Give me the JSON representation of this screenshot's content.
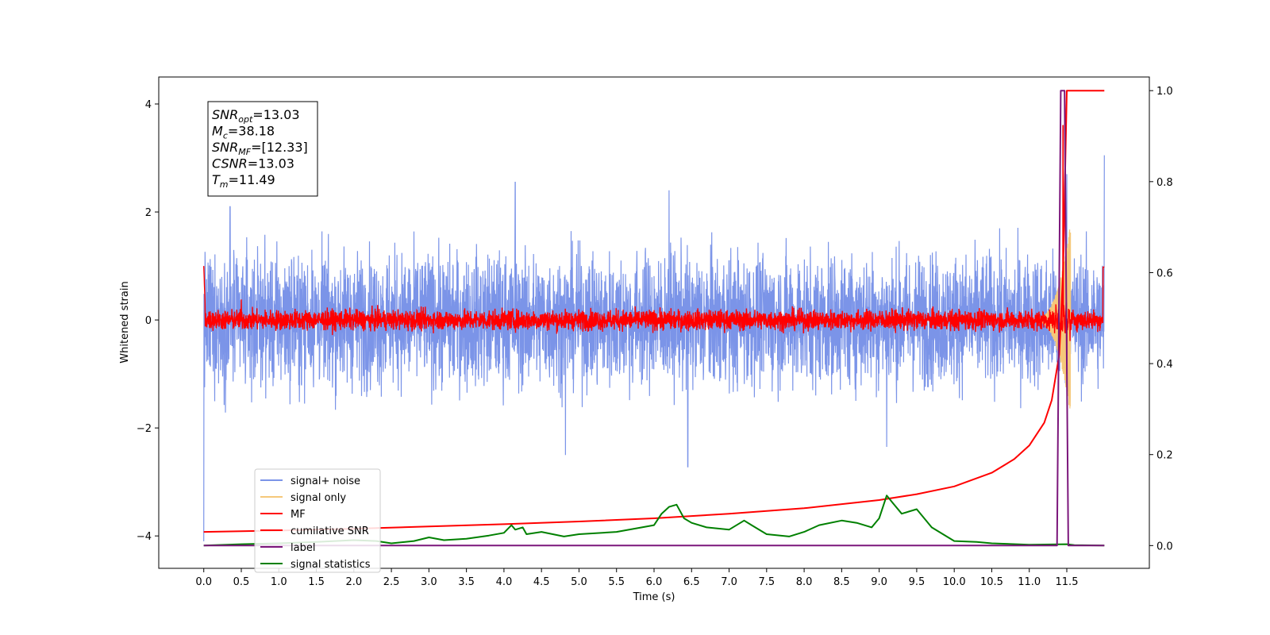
{
  "chart_data": {
    "type": "line",
    "xlabel": "Time (s)",
    "ylabel": "Whitened strain",
    "xlim": [
      -0.6,
      12.6
    ],
    "ylim": [
      -4.6,
      4.5
    ],
    "y2lim": [
      -0.05,
      1.03
    ],
    "grid": false,
    "legend_position": "lower-left",
    "x_ticks": [
      "0.0",
      "0.5",
      "1.0",
      "1.5",
      "2.0",
      "2.5",
      "3.0",
      "3.5",
      "4.0",
      "4.5",
      "5.0",
      "5.5",
      "6.0",
      "6.5",
      "7.0",
      "7.5",
      "8.0",
      "8.5",
      "9.0",
      "9.5",
      "10.0",
      "10.5",
      "11.0",
      "11.5"
    ],
    "y_ticks": [
      "4",
      "2",
      "0",
      "−2",
      "−4"
    ],
    "y2_ticks": [
      "1.0",
      "0.8",
      "0.6",
      "0.4",
      "0.2",
      "0.0"
    ],
    "annotation": {
      "lines": [
        {
          "base": "SNR",
          "sub": "opt",
          "value": "=13.03"
        },
        {
          "base": "M",
          "sub": "c",
          "value": "=38.18"
        },
        {
          "base": "SNR",
          "sub": "MF",
          "value": "=[12.33]"
        },
        {
          "base": "CSNR",
          "sub": "",
          "value": "=13.03"
        },
        {
          "base": "T",
          "sub": "m",
          "value": "=11.49"
        }
      ]
    },
    "series": [
      {
        "name": "signal+ noise",
        "axis": "left",
        "color": "#7b94e8",
        "style": "noise",
        "x_range": [
          0.0,
          12.0
        ],
        "amplitude_typical": 0.65,
        "peaks": [
          [
            0.35,
            2.1
          ],
          [
            4.15,
            2.55
          ],
          [
            6.2,
            2.4
          ],
          [
            11.5,
            2.7
          ],
          [
            12.0,
            3.05
          ],
          [
            6.45,
            -2.72
          ],
          [
            4.82,
            -2.5
          ],
          [
            9.1,
            -2.35
          ],
          [
            0.0,
            -4.1
          ]
        ]
      },
      {
        "name": "signal only",
        "axis": "left",
        "color": "#f5c87a",
        "style": "chirp",
        "x_range": [
          11.0,
          11.55
        ],
        "peak_amplitude": 1.8
      },
      {
        "name": "MF",
        "axis": "left",
        "color": "#ff0000",
        "style": "noise",
        "x_range": [
          0.0,
          12.0
        ],
        "amplitude_typical": 0.1,
        "start_value": 1.0,
        "end_value": 0.98,
        "peaks": [
          [
            0.5,
            0.38
          ],
          [
            11.45,
            3.6
          ],
          [
            11.5,
            -1.0
          ]
        ]
      },
      {
        "name": "cumilative SNR",
        "axis": "right",
        "color": "#ff0000",
        "style": "line",
        "x": [
          0.0,
          1.0,
          2.0,
          3.0,
          4.0,
          5.0,
          6.0,
          7.0,
          8.0,
          9.0,
          9.5,
          10.0,
          10.5,
          10.8,
          11.0,
          11.2,
          11.3,
          11.4,
          11.45,
          11.5,
          11.6,
          12.0
        ],
        "y": [
          0.03,
          0.033,
          0.037,
          0.042,
          0.047,
          0.053,
          0.06,
          0.07,
          0.082,
          0.1,
          0.113,
          0.13,
          0.16,
          0.19,
          0.22,
          0.27,
          0.32,
          0.42,
          0.6,
          1.0,
          1.0,
          1.0
        ]
      },
      {
        "name": "label",
        "axis": "right",
        "color": "#7b167b",
        "style": "line",
        "x": [
          0.0,
          11.37,
          11.42,
          11.47,
          11.52,
          12.0
        ],
        "y": [
          0.0,
          0.0,
          1.0,
          1.0,
          0.0,
          0.0
        ]
      },
      {
        "name": "signal statistics",
        "axis": "right",
        "color": "#008000",
        "style": "line",
        "x": [
          0.0,
          0.5,
          1.0,
          1.5,
          2.0,
          2.3,
          2.5,
          2.8,
          3.0,
          3.2,
          3.5,
          3.8,
          4.0,
          4.1,
          4.15,
          4.25,
          4.3,
          4.5,
          4.8,
          5.0,
          5.5,
          6.0,
          6.1,
          6.2,
          6.3,
          6.4,
          6.5,
          6.7,
          7.0,
          7.2,
          7.3,
          7.5,
          7.8,
          8.0,
          8.2,
          8.5,
          8.7,
          8.9,
          9.0,
          9.1,
          9.2,
          9.3,
          9.5,
          9.7,
          9.9,
          10.0,
          10.3,
          10.5,
          11.0,
          11.5,
          11.6,
          12.0
        ],
        "y": [
          0.0,
          0.003,
          0.005,
          0.008,
          0.012,
          0.01,
          0.005,
          0.01,
          0.018,
          0.012,
          0.015,
          0.022,
          0.028,
          0.045,
          0.035,
          0.04,
          0.025,
          0.03,
          0.02,
          0.025,
          0.03,
          0.045,
          0.07,
          0.085,
          0.09,
          0.06,
          0.05,
          0.04,
          0.035,
          0.055,
          0.045,
          0.025,
          0.02,
          0.03,
          0.045,
          0.055,
          0.05,
          0.04,
          0.06,
          0.11,
          0.09,
          0.07,
          0.08,
          0.04,
          0.02,
          0.01,
          0.008,
          0.005,
          0.002,
          0.003,
          0.001,
          0.0
        ]
      }
    ]
  }
}
